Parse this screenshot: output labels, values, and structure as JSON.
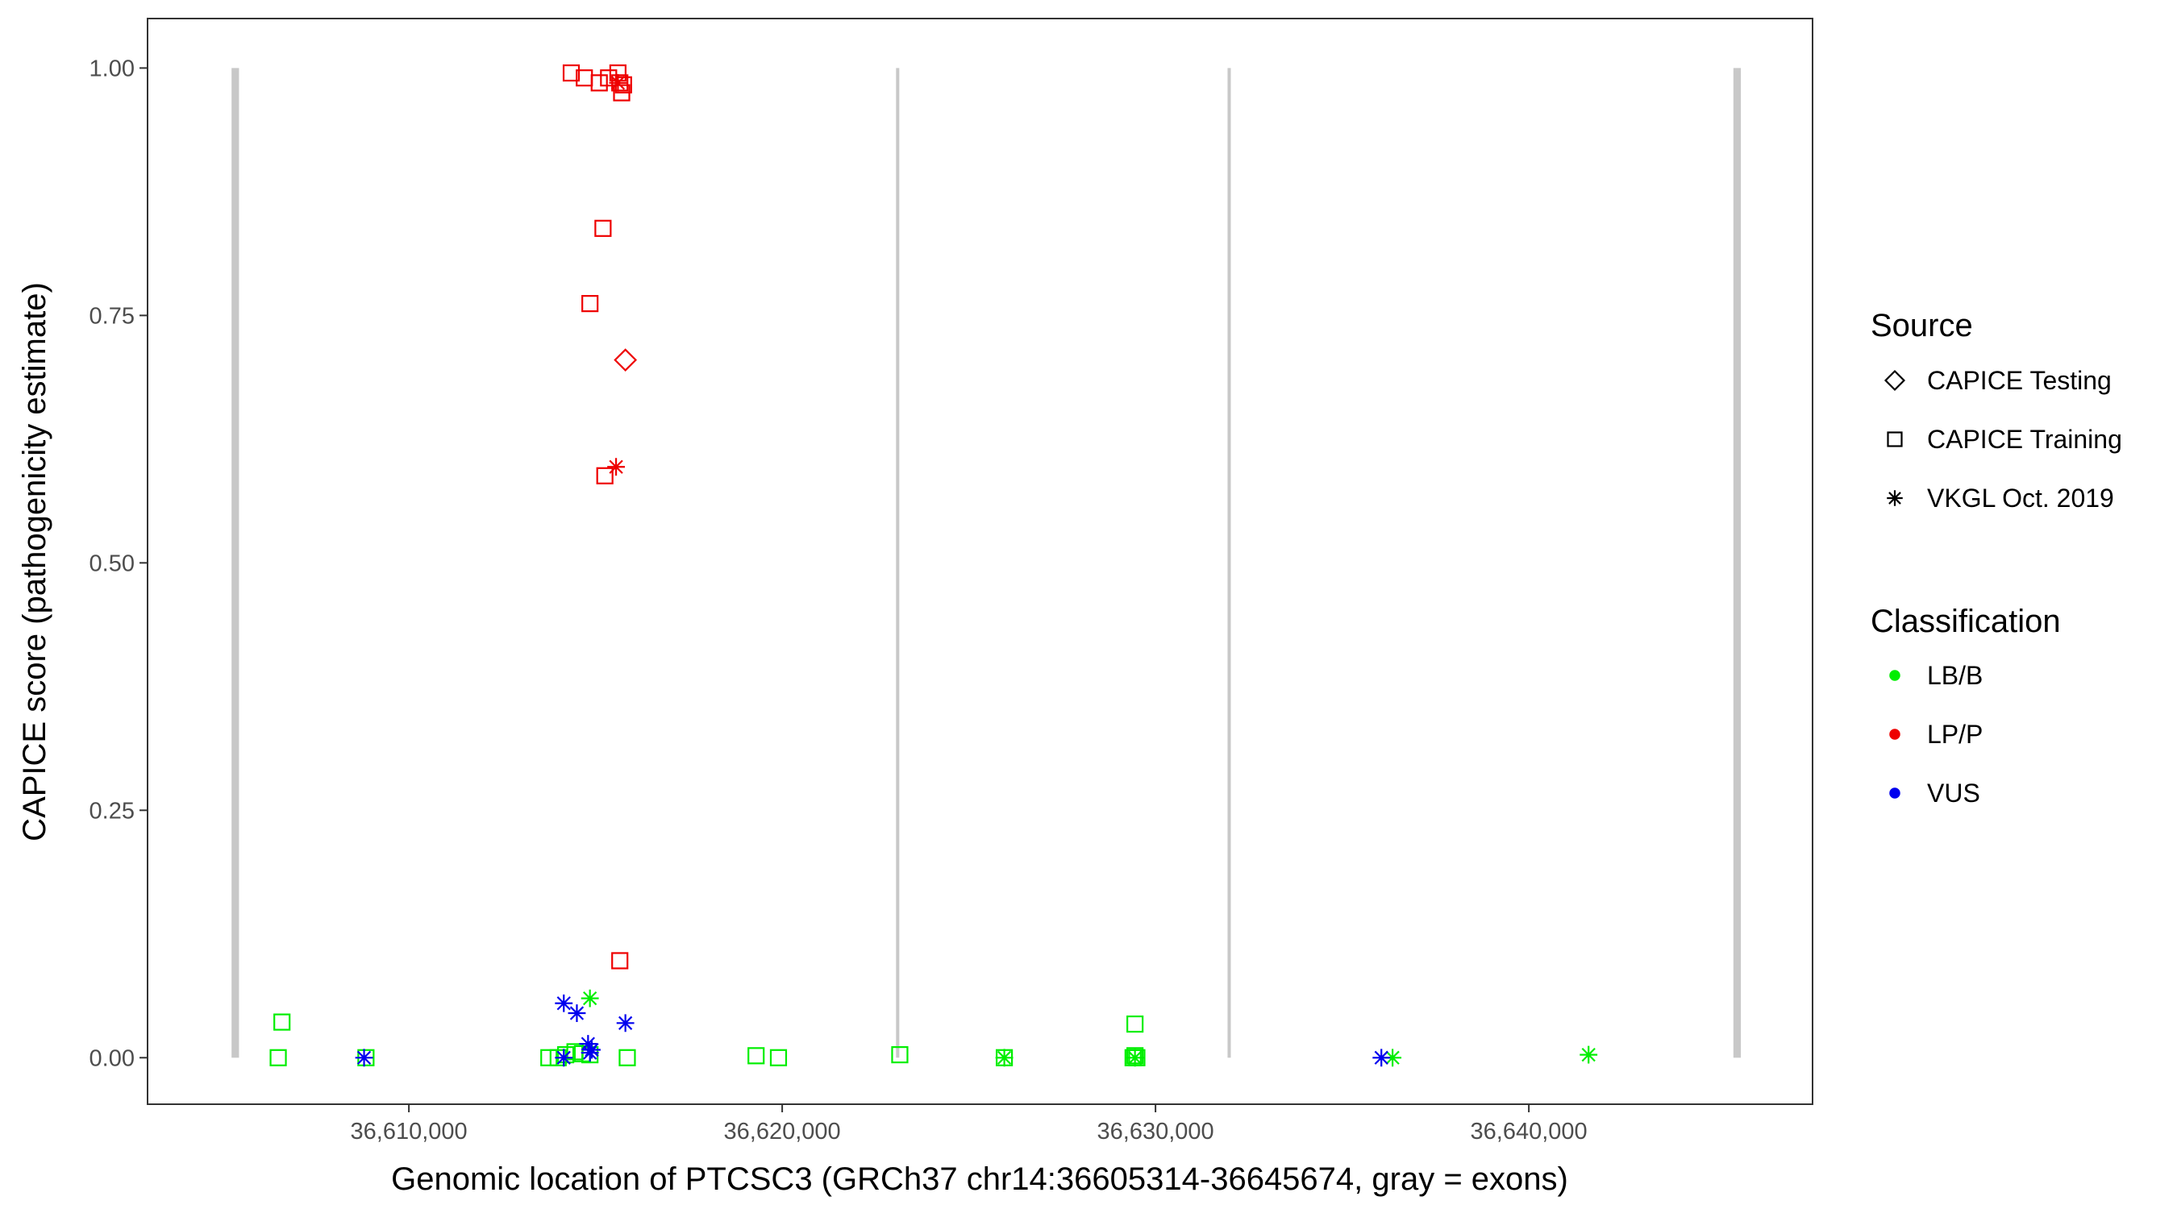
{
  "chart_data": {
    "type": "scatter",
    "title": "",
    "xlabel": "Genomic location of PTCSC3 (GRCh37 chr14:36605314-36645674, gray = exons)",
    "ylabel": "CAPICE score (pathogenicity estimate)",
    "xlim": [
      36603000,
      36647600
    ],
    "ylim": [
      -0.047,
      1.05
    ],
    "x_ticks": [
      36610000,
      36620000,
      36630000,
      36640000
    ],
    "x_tick_labels": [
      "36,610,000",
      "36,620,000",
      "36,630,000",
      "36,640,000"
    ],
    "y_ticks": [
      0,
      0.25,
      0.5,
      0.75,
      1.0
    ],
    "y_tick_labels": [
      "0.00",
      "0.25",
      "0.50",
      "0.75",
      "1.00"
    ],
    "grid": false,
    "exons": [
      {
        "start": 36605250,
        "end": 36605450
      },
      {
        "start": 36623050,
        "end": 36623130
      },
      {
        "start": 36631930,
        "end": 36632010
      },
      {
        "start": 36645480,
        "end": 36645680
      }
    ],
    "colors": {
      "exon": "#c8c8c8",
      "LB/B": "#00ee00",
      "LP/P": "#ee0000",
      "VUS": "#0000ee"
    },
    "legend": {
      "position": "right",
      "source_title": "Source",
      "source_items": [
        {
          "label": "CAPICE Testing",
          "shape": "diamond"
        },
        {
          "label": "CAPICE Training",
          "shape": "square"
        },
        {
          "label": "VKGL Oct. 2019",
          "shape": "asterisk"
        }
      ],
      "class_title": "Classification",
      "class_items": [
        {
          "label": "LB/B",
          "color": "#00ee00"
        },
        {
          "label": "LP/P",
          "color": "#ee0000"
        },
        {
          "label": "VUS",
          "color": "#0000ee"
        }
      ]
    },
    "series": [
      {
        "name": "LP/P",
        "source": "CAPICE Training",
        "shape": "square",
        "color": "#ee0000",
        "points": [
          {
            "x": 36614350,
            "y": 0.995
          },
          {
            "x": 36614700,
            "y": 0.99
          },
          {
            "x": 36615100,
            "y": 0.985
          },
          {
            "x": 36615350,
            "y": 0.99
          },
          {
            "x": 36615600,
            "y": 0.995
          },
          {
            "x": 36615650,
            "y": 0.985
          },
          {
            "x": 36615750,
            "y": 0.983
          },
          {
            "x": 36615700,
            "y": 0.975
          },
          {
            "x": 36615200,
            "y": 0.838
          },
          {
            "x": 36614850,
            "y": 0.762
          },
          {
            "x": 36615250,
            "y": 0.588
          },
          {
            "x": 36615650,
            "y": 0.098
          }
        ]
      },
      {
        "name": "LP/P",
        "source": "VKGL Oct. 2019",
        "shape": "asterisk",
        "color": "#ee0000",
        "points": [
          {
            "x": 36615600,
            "y": 0.985
          },
          {
            "x": 36615550,
            "y": 0.597
          }
        ]
      },
      {
        "name": "LP/P",
        "source": "CAPICE Testing",
        "shape": "diamond",
        "color": "#ee0000",
        "points": [
          {
            "x": 36615800,
            "y": 0.705
          }
        ]
      },
      {
        "name": "LB/B",
        "source": "CAPICE Training",
        "shape": "square",
        "color": "#00ee00",
        "points": [
          {
            "x": 36606600,
            "y": 0.036
          },
          {
            "x": 36606500,
            "y": 0.0
          },
          {
            "x": 36608850,
            "y": 0.0
          },
          {
            "x": 36613750,
            "y": 0.0
          },
          {
            "x": 36614000,
            "y": 0.0
          },
          {
            "x": 36614200,
            "y": 0.003
          },
          {
            "x": 36614450,
            "y": 0.006
          },
          {
            "x": 36614650,
            "y": 0.004
          },
          {
            "x": 36614850,
            "y": 0.003
          },
          {
            "x": 36615850,
            "y": 0.0
          },
          {
            "x": 36619300,
            "y": 0.002
          },
          {
            "x": 36619900,
            "y": 0.0
          },
          {
            "x": 36623150,
            "y": 0.003
          },
          {
            "x": 36625950,
            "y": 0.0
          },
          {
            "x": 36629450,
            "y": 0.034
          },
          {
            "x": 36629450,
            "y": 0.002
          },
          {
            "x": 36629500,
            "y": 0.0
          },
          {
            "x": 36629400,
            "y": 0.0
          }
        ]
      },
      {
        "name": "LB/B",
        "source": "VKGL Oct. 2019",
        "shape": "asterisk",
        "color": "#00ee00",
        "points": [
          {
            "x": 36614850,
            "y": 0.06
          },
          {
            "x": 36625950,
            "y": 0.0
          },
          {
            "x": 36629450,
            "y": 0.0
          },
          {
            "x": 36636350,
            "y": 0.0
          },
          {
            "x": 36641600,
            "y": 0.003
          }
        ]
      },
      {
        "name": "VUS",
        "source": "VKGL Oct. 2019",
        "shape": "asterisk",
        "color": "#0000ee",
        "points": [
          {
            "x": 36608800,
            "y": 0.0
          },
          {
            "x": 36614150,
            "y": 0.055
          },
          {
            "x": 36614500,
            "y": 0.045
          },
          {
            "x": 36615800,
            "y": 0.035
          },
          {
            "x": 36614800,
            "y": 0.014
          },
          {
            "x": 36614900,
            "y": 0.008
          },
          {
            "x": 36614850,
            "y": 0.005
          },
          {
            "x": 36614150,
            "y": 0.0
          },
          {
            "x": 36636050,
            "y": 0.0
          }
        ]
      }
    ]
  }
}
